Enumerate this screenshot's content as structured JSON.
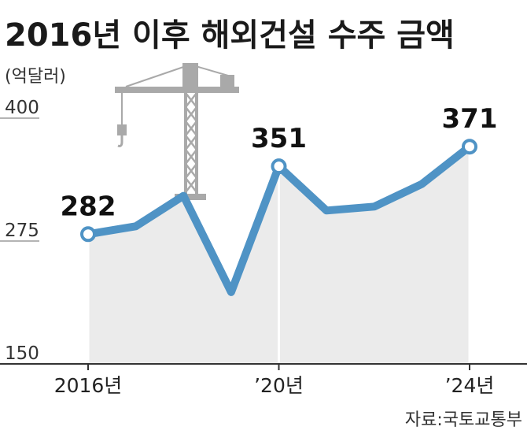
{
  "title": "2016년 이후 해외건설 수주 금액",
  "unit": "(억달러)",
  "source": "자료:국토교통부",
  "colors": {
    "line": "#4f93c5",
    "area": "#ebebeb",
    "crane": "#a9a9a9",
    "axis": "#333333"
  },
  "chart_data": {
    "type": "area",
    "x": [
      2016,
      2017,
      2018,
      2019,
      2020,
      2021,
      2022,
      2023,
      2024
    ],
    "values": [
      282,
      290,
      321,
      223,
      351,
      306,
      310,
      333,
      371
    ],
    "ylim": [
      150,
      400
    ],
    "yticks": [
      400,
      275,
      150
    ],
    "xtick_labels": [
      {
        "x": 2016,
        "label": "2016년"
      },
      {
        "x": 2020,
        "label": "’20년"
      },
      {
        "x": 2024,
        "label": "’24년"
      }
    ],
    "labeled_points": [
      {
        "x": 2016,
        "value": 282,
        "label": "282"
      },
      {
        "x": 2020,
        "value": 351,
        "label": "351"
      },
      {
        "x": 2024,
        "value": 371,
        "label": "371"
      }
    ],
    "decoration": "tower-crane-icon"
  }
}
